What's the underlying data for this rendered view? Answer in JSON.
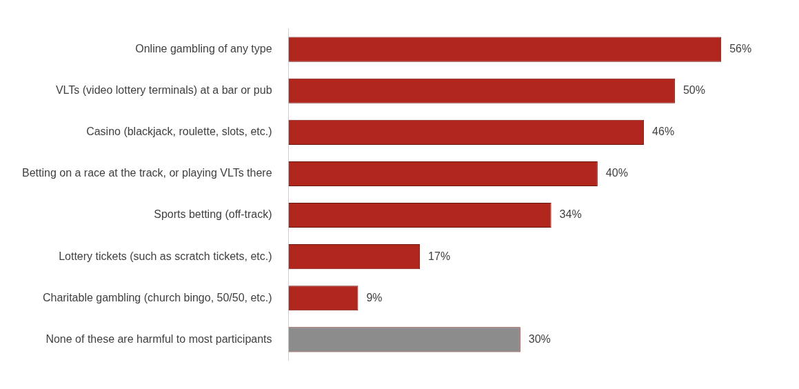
{
  "chart_data": {
    "type": "bar",
    "orientation": "horizontal",
    "categories": [
      "Online gambling of any type",
      "VLTs (video lottery terminals) at a bar or pub",
      "Casino (blackjack, roulette, slots, etc.)",
      "Betting on a race at the track, or playing VLTs there",
      "Sports betting (off-track)",
      "Lottery tickets (such as scratch tickets, etc.)",
      "Charitable gambling (church bingo, 50/50, etc.)",
      "None of these are harmful to most participants"
    ],
    "values": [
      56,
      50,
      46,
      40,
      34,
      17,
      9,
      30
    ],
    "colors": [
      "#b0261c",
      "#b0261c",
      "#b0261c",
      "#b0261c",
      "#b0261c",
      "#b0261c",
      "#b0261c",
      "#8c8c8c"
    ],
    "value_labels": [
      "56%",
      "50%",
      "46%",
      "40%",
      "34%",
      "17%",
      "9%",
      "30%"
    ],
    "grid": false,
    "legend": false
  }
}
